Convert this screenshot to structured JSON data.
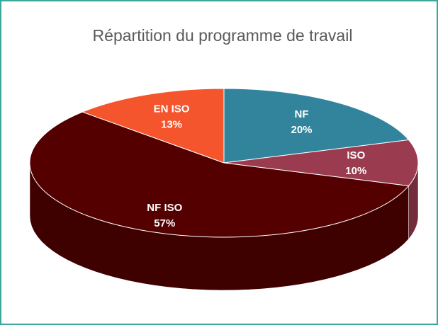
{
  "chart_data": {
    "type": "pie3d",
    "title": "Répartition du programme de travail",
    "categories": [
      "NF",
      "ISO",
      "NF ISO",
      "EN ISO"
    ],
    "values": [
      20,
      10,
      57,
      13
    ],
    "value_labels": [
      "20%",
      "10%",
      "57%",
      "13%"
    ],
    "colors": [
      "#31849b",
      "#9b3b50",
      "#540000",
      "#f4552d"
    ]
  }
}
